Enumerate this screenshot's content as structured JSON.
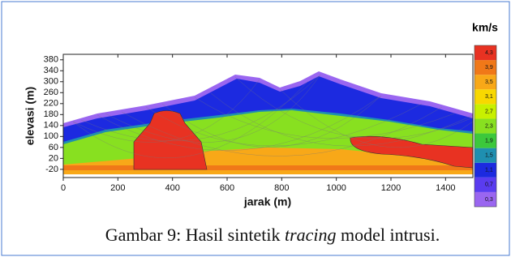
{
  "chart_data": {
    "type": "velocity-section",
    "xlabel": "jarak (m)",
    "ylabel": "elevasi (m)",
    "xlim": [
      0,
      1500
    ],
    "xticks": [
      0,
      200,
      400,
      600,
      800,
      1000,
      1200,
      1400
    ],
    "ylim": [
      -50,
      400
    ],
    "yticks": [
      -20,
      20,
      60,
      100,
      140,
      180,
      220,
      260,
      300,
      340,
      380
    ],
    "colorbar": {
      "title": "km/s",
      "lim": [
        0.1,
        4.5
      ],
      "ticks": [
        {
          "value": 0.3,
          "label": "0,3"
        },
        {
          "value": 0.7,
          "label": "0,7"
        },
        {
          "value": 1.1,
          "label": "1,1"
        },
        {
          "value": 1.5,
          "label": "1,5"
        },
        {
          "value": 1.9,
          "label": "1,9"
        },
        {
          "value": 2.3,
          "label": "2,3"
        },
        {
          "value": 2.7,
          "label": "2,7"
        },
        {
          "value": 3.1,
          "label": "3,1"
        },
        {
          "value": 3.5,
          "label": "3,5"
        },
        {
          "value": 3.9,
          "label": "3,9"
        },
        {
          "value": 4.3,
          "label": "4,3"
        }
      ],
      "colors": [
        "#9a66f0",
        "#5a3cf0",
        "#1c2ae0",
        "#1f8fb0",
        "#3cc83c",
        "#88e020",
        "#c8f000",
        "#f8d800",
        "#f8a818",
        "#f07818",
        "#e83222"
      ]
    }
  },
  "caption": {
    "label": "Gambar 9:",
    "before": "Hasil sintetik",
    "emphasis": "tracing",
    "after": "model intrusi."
  }
}
